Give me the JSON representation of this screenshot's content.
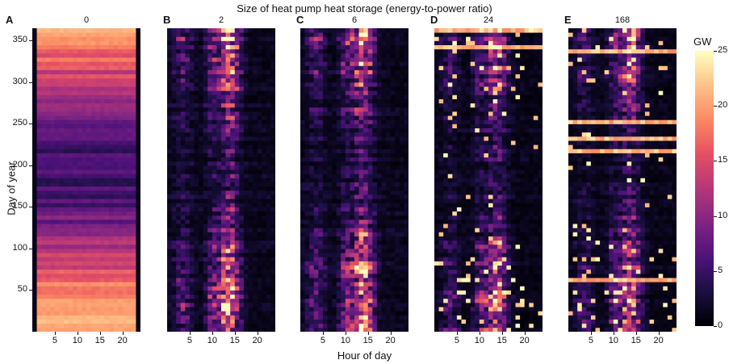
{
  "chart_data": {
    "type": "heatmap",
    "title": "Size of heat pump heat storage (energy-to-power ratio)",
    "xlabel": "Hour of day",
    "ylabel": "Day of year",
    "x_ticks": [
      "5",
      "10",
      "15",
      "20"
    ],
    "y_ticks": [
      "50",
      "100",
      "150",
      "200",
      "250",
      "300",
      "350"
    ],
    "xlim": [
      0,
      24
    ],
    "ylim": [
      0,
      365
    ],
    "colorbar": {
      "label": "GW",
      "ticks": [
        "0",
        "5",
        "10",
        "15",
        "20",
        "25"
      ],
      "range": [
        0,
        25
      ],
      "colormap": "magma"
    },
    "panels": [
      {
        "letter": "A",
        "storage_ratio": "0"
      },
      {
        "letter": "B",
        "storage_ratio": "2"
      },
      {
        "letter": "C",
        "storage_ratio": "6"
      },
      {
        "letter": "D",
        "storage_ratio": "24"
      },
      {
        "letter": "E",
        "storage_ratio": "168"
      }
    ]
  }
}
